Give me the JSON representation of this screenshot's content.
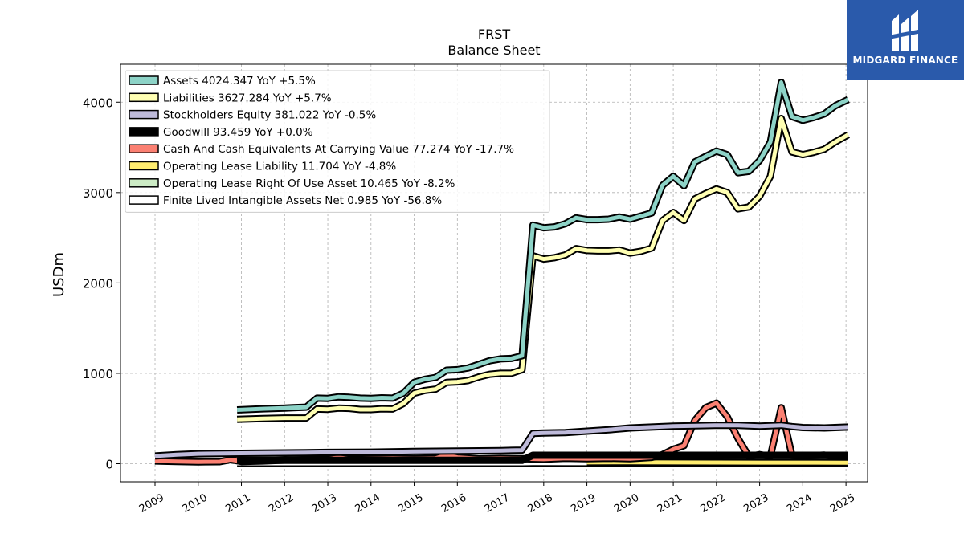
{
  "chart_data": {
    "type": "line",
    "title": "FRST",
    "subtitle": "Balance  Sheet",
    "ylabel": "USDm",
    "xlabel": "",
    "ylim": [
      -200,
      4420
    ],
    "xlim": [
      2008.2,
      2025.5
    ],
    "yticks": [
      0,
      1000,
      2000,
      3000,
      4000
    ],
    "xticks": [
      "2009",
      "2010",
      "2011",
      "2012",
      "2013",
      "2014",
      "2015",
      "2016",
      "2017",
      "2018",
      "2019",
      "2020",
      "2021",
      "2022",
      "2023",
      "2024",
      "2025"
    ],
    "grid": true,
    "legend_position": "top-left",
    "series": [
      {
        "name": "Assets",
        "legend": "Assets  4024.347 YoY +5.5%",
        "color": "#8dd3c7",
        "points": [
          [
            2010.9,
            595
          ],
          [
            2011.5,
            608
          ],
          [
            2012.0,
            615
          ],
          [
            2012.2,
            620
          ],
          [
            2012.5,
            625
          ],
          [
            2012.75,
            725
          ],
          [
            2013.0,
            722
          ],
          [
            2013.25,
            740
          ],
          [
            2013.5,
            735
          ],
          [
            2013.75,
            725
          ],
          [
            2014.0,
            722
          ],
          [
            2014.25,
            728
          ],
          [
            2014.5,
            725
          ],
          [
            2014.75,
            780
          ],
          [
            2015.0,
            900
          ],
          [
            2015.25,
            935
          ],
          [
            2015.5,
            955
          ],
          [
            2015.75,
            1035
          ],
          [
            2016.0,
            1040
          ],
          [
            2016.25,
            1060
          ],
          [
            2016.5,
            1100
          ],
          [
            2016.75,
            1140
          ],
          [
            2017.0,
            1160
          ],
          [
            2017.25,
            1165
          ],
          [
            2017.5,
            1195
          ],
          [
            2017.75,
            2640
          ],
          [
            2018.0,
            2610
          ],
          [
            2018.25,
            2620
          ],
          [
            2018.5,
            2655
          ],
          [
            2018.75,
            2720
          ],
          [
            2019.0,
            2700
          ],
          [
            2019.25,
            2700
          ],
          [
            2019.5,
            2705
          ],
          [
            2019.75,
            2730
          ],
          [
            2020.0,
            2705
          ],
          [
            2020.25,
            2740
          ],
          [
            2020.5,
            2775
          ],
          [
            2020.75,
            3080
          ],
          [
            2021.0,
            3180
          ],
          [
            2021.25,
            3075
          ],
          [
            2021.5,
            3340
          ],
          [
            2021.75,
            3400
          ],
          [
            2022.0,
            3460
          ],
          [
            2022.25,
            3420
          ],
          [
            2022.5,
            3220
          ],
          [
            2022.75,
            3235
          ],
          [
            2023.0,
            3355
          ],
          [
            2023.25,
            3560
          ],
          [
            2023.5,
            4220
          ],
          [
            2023.75,
            3840
          ],
          [
            2024.0,
            3800
          ],
          [
            2024.25,
            3830
          ],
          [
            2024.5,
            3870
          ],
          [
            2024.75,
            3960
          ],
          [
            2025.05,
            4030
          ]
        ]
      },
      {
        "name": "Liabilities",
        "legend": "Liabilities  3627.284 YoY +5.7%",
        "color": "#ffffb3",
        "points": [
          [
            2010.9,
            490
          ],
          [
            2011.5,
            500
          ],
          [
            2012.0,
            505
          ],
          [
            2012.2,
            505
          ],
          [
            2012.5,
            505
          ],
          [
            2012.75,
            605
          ],
          [
            2013.0,
            602
          ],
          [
            2013.25,
            615
          ],
          [
            2013.5,
            612
          ],
          [
            2013.75,
            600
          ],
          [
            2014.0,
            600
          ],
          [
            2014.25,
            608
          ],
          [
            2014.5,
            605
          ],
          [
            2014.75,
            665
          ],
          [
            2015.0,
            780
          ],
          [
            2015.25,
            810
          ],
          [
            2015.5,
            825
          ],
          [
            2015.75,
            900
          ],
          [
            2016.0,
            905
          ],
          [
            2016.25,
            920
          ],
          [
            2016.5,
            960
          ],
          [
            2016.75,
            990
          ],
          [
            2017.0,
            1000
          ],
          [
            2017.25,
            1000
          ],
          [
            2017.5,
            1040
          ],
          [
            2017.75,
            2300
          ],
          [
            2018.0,
            2265
          ],
          [
            2018.25,
            2280
          ],
          [
            2018.5,
            2310
          ],
          [
            2018.75,
            2380
          ],
          [
            2019.0,
            2360
          ],
          [
            2019.25,
            2355
          ],
          [
            2019.5,
            2355
          ],
          [
            2019.75,
            2365
          ],
          [
            2020.0,
            2330
          ],
          [
            2020.25,
            2350
          ],
          [
            2020.5,
            2385
          ],
          [
            2020.75,
            2690
          ],
          [
            2021.0,
            2780
          ],
          [
            2021.25,
            2690
          ],
          [
            2021.5,
            2930
          ],
          [
            2021.75,
            2990
          ],
          [
            2022.0,
            3040
          ],
          [
            2022.25,
            3000
          ],
          [
            2022.5,
            2820
          ],
          [
            2022.75,
            2840
          ],
          [
            2023.0,
            2960
          ],
          [
            2023.25,
            3180
          ],
          [
            2023.5,
            3820
          ],
          [
            2023.75,
            3450
          ],
          [
            2024.0,
            3420
          ],
          [
            2024.25,
            3445
          ],
          [
            2024.5,
            3480
          ],
          [
            2024.75,
            3560
          ],
          [
            2025.05,
            3640
          ]
        ]
      },
      {
        "name": "Stockholders Equity",
        "legend": "Stockholders Equity  381.022 YoY -0.5%",
        "color": "#bebada",
        "points": [
          [
            2009.0,
            85
          ],
          [
            2009.5,
            100
          ],
          [
            2010.0,
            110
          ],
          [
            2011.0,
            115
          ],
          [
            2012.0,
            120
          ],
          [
            2013.0,
            125
          ],
          [
            2014.0,
            128
          ],
          [
            2015.0,
            135
          ],
          [
            2016.0,
            140
          ],
          [
            2017.0,
            145
          ],
          [
            2017.5,
            150
          ],
          [
            2017.75,
            335
          ],
          [
            2018.0,
            340
          ],
          [
            2018.5,
            345
          ],
          [
            2019.0,
            360
          ],
          [
            2019.5,
            375
          ],
          [
            2020.0,
            395
          ],
          [
            2020.5,
            405
          ],
          [
            2021.0,
            415
          ],
          [
            2021.5,
            420
          ],
          [
            2022.0,
            425
          ],
          [
            2022.5,
            425
          ],
          [
            2022.75,
            420
          ],
          [
            2023.0,
            415
          ],
          [
            2023.5,
            425
          ],
          [
            2023.75,
            410
          ],
          [
            2024.0,
            400
          ],
          [
            2024.5,
            395
          ],
          [
            2025.05,
            405
          ]
        ]
      },
      {
        "name": "Goodwill",
        "legend": "Goodwill  93.459 YoY +0.0%",
        "color": "#000000",
        "points": [
          [
            2010.9,
            37
          ],
          [
            2017.5,
            37
          ],
          [
            2017.75,
            93
          ],
          [
            2025.05,
            93
          ]
        ]
      },
      {
        "name": "Cash And Cash Equivalents At Carrying Value",
        "legend": "Cash And Cash Equivalents At Carrying Value  77.274 YoY -17.7%",
        "color": "#fb8072",
        "points": [
          [
            2009.0,
            30
          ],
          [
            2009.5,
            25
          ],
          [
            2010.0,
            20
          ],
          [
            2010.5,
            22
          ],
          [
            2010.75,
            45
          ],
          [
            2011.0,
            25
          ],
          [
            2011.5,
            30
          ],
          [
            2012.0,
            40
          ],
          [
            2012.5,
            45
          ],
          [
            2013.0,
            50
          ],
          [
            2013.25,
            70
          ],
          [
            2013.5,
            50
          ],
          [
            2014.0,
            55
          ],
          [
            2014.5,
            60
          ],
          [
            2015.0,
            55
          ],
          [
            2015.5,
            60
          ],
          [
            2015.75,
            95
          ],
          [
            2016.0,
            70
          ],
          [
            2016.5,
            55
          ],
          [
            2017.0,
            60
          ],
          [
            2017.5,
            55
          ],
          [
            2018.0,
            50
          ],
          [
            2018.5,
            60
          ],
          [
            2019.0,
            55
          ],
          [
            2019.5,
            60
          ],
          [
            2020.0,
            55
          ],
          [
            2020.5,
            70
          ],
          [
            2020.75,
            100
          ],
          [
            2021.0,
            160
          ],
          [
            2021.25,
            200
          ],
          [
            2021.5,
            480
          ],
          [
            2021.75,
            620
          ],
          [
            2022.0,
            670
          ],
          [
            2022.25,
            520
          ],
          [
            2022.5,
            280
          ],
          [
            2022.75,
            80
          ],
          [
            2023.0,
            100
          ],
          [
            2023.25,
            80
          ],
          [
            2023.5,
            620
          ],
          [
            2023.75,
            90
          ],
          [
            2024.0,
            85
          ],
          [
            2024.25,
            90
          ],
          [
            2024.5,
            95
          ],
          [
            2024.75,
            80
          ],
          [
            2025.05,
            77
          ]
        ]
      },
      {
        "name": "Operating Lease Liability",
        "legend": "Operating Lease Liability  11.704 YoY -4.8%",
        "color": "#ffed6f",
        "points": [
          [
            2019.0,
            14
          ],
          [
            2020.0,
            16
          ],
          [
            2021.0,
            14
          ],
          [
            2022.0,
            13
          ],
          [
            2023.0,
            12
          ],
          [
            2024.0,
            12
          ],
          [
            2025.05,
            11.7
          ]
        ]
      },
      {
        "name": "Operating Lease Right Of Use Asset",
        "legend": "Operating Lease Right Of Use Asset  10.465 YoY -8.2%",
        "color": "#ccebc5",
        "points": [
          [
            2019.0,
            13
          ],
          [
            2020.0,
            14
          ],
          [
            2021.0,
            13
          ],
          [
            2022.0,
            12
          ],
          [
            2023.0,
            11
          ],
          [
            2024.0,
            11
          ],
          [
            2025.05,
            10.5
          ]
        ]
      },
      {
        "name": "Finite Lived Intangible Assets Net",
        "legend": "Finite Lived Intangible Assets Net  0.985 YoY -56.8%",
        "color": "#ffffff",
        "points": [
          [
            2010.9,
            4
          ],
          [
            2017.5,
            4
          ],
          [
            2017.75,
            6
          ],
          [
            2019.0,
            5
          ],
          [
            2021.0,
            3
          ],
          [
            2023.0,
            2
          ],
          [
            2025.05,
            1
          ]
        ]
      }
    ]
  },
  "logo": {
    "text": "MIDGARD FINANCE",
    "background": "#2a5aab"
  }
}
